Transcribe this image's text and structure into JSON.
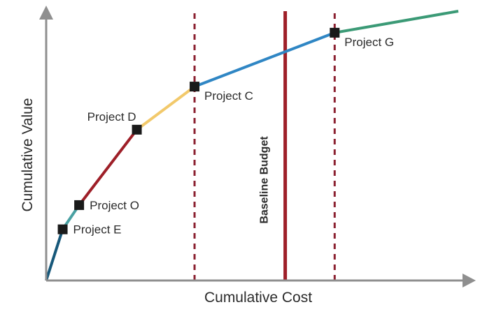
{
  "chart_data": {
    "type": "line",
    "xlabel": "Cumulative Cost",
    "ylabel": "Cumulative Value",
    "xlim": [
      0,
      100
    ],
    "ylim": [
      0,
      100
    ],
    "grid": false,
    "tick_labels": false,
    "curve_points": [
      {
        "x": 0,
        "y": 0
      },
      {
        "x": 4,
        "y": 19
      },
      {
        "x": 8,
        "y": 28
      },
      {
        "x": 22,
        "y": 56
      },
      {
        "x": 36,
        "y": 72
      },
      {
        "x": 70,
        "y": 92
      },
      {
        "x": 100,
        "y": 100
      }
    ],
    "segment_colors": [
      "#17587a",
      "#4aa1a3",
      "#9e1f28",
      "#f2c96b",
      "#2f86c4",
      "#3b9a76"
    ],
    "projects": [
      {
        "label": "Project E",
        "x": 4,
        "y": 19,
        "label_side": "right"
      },
      {
        "label": "Project O",
        "x": 8,
        "y": 28,
        "label_side": "right"
      },
      {
        "label": "Project D",
        "x": 22,
        "y": 56,
        "label_side": "above-left"
      },
      {
        "label": "Project C",
        "x": 36,
        "y": 72,
        "label_side": "right-below"
      },
      {
        "label": "Project G",
        "x": 70,
        "y": 92,
        "label_side": "right-below"
      }
    ],
    "vertical_lines": [
      {
        "x": 36,
        "style": "dashed",
        "color": "#8b2030",
        "label": ""
      },
      {
        "x": 58,
        "style": "solid",
        "color": "#9e1f28",
        "label": "Baseline Budget"
      },
      {
        "x": 70,
        "style": "dashed",
        "color": "#8b2030",
        "label": ""
      }
    ],
    "axis_color": "#8f8f8f",
    "marker_color": "#1a1a1a"
  }
}
